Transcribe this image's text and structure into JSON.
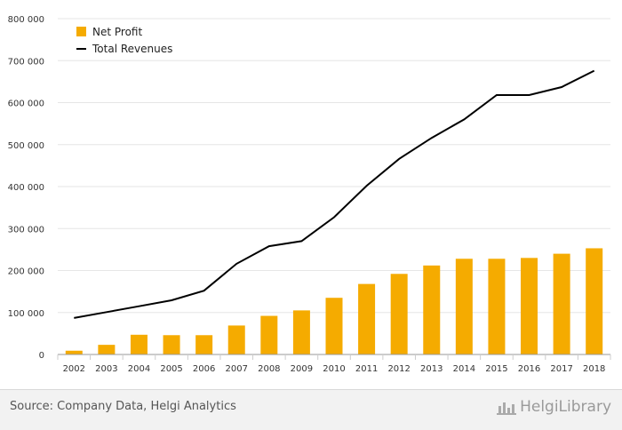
{
  "chart_data": {
    "type": "bar",
    "categories": [
      "2002",
      "2003",
      "2004",
      "2005",
      "2006",
      "2007",
      "2008",
      "2009",
      "2010",
      "2011",
      "2012",
      "2013",
      "2014",
      "2015",
      "2016",
      "2017",
      "2018"
    ],
    "series": [
      {
        "name": "Net Profit",
        "type": "bar",
        "color": "#f5ab00",
        "values": [
          9000,
          23000,
          47000,
          46000,
          46000,
          69000,
          92000,
          105000,
          135000,
          168000,
          192000,
          212000,
          228000,
          228000,
          230000,
          240000,
          253000
        ]
      },
      {
        "name": "Total Revenues",
        "type": "line",
        "color": "#000000",
        "values": [
          87000,
          101000,
          115000,
          129000,
          152000,
          216000,
          258000,
          270000,
          327000,
          402000,
          466000,
          516000,
          560000,
          618000,
          618000,
          637000,
          676000
        ]
      }
    ],
    "y_ticks": [
      "0",
      "100 000",
      "200 000",
      "300 000",
      "400 000",
      "500 000",
      "600 000",
      "700 000",
      "800 000"
    ],
    "ylim": [
      0,
      800000
    ],
    "grid": true,
    "legend_position": "top-left"
  },
  "legend": {
    "net_profit": "Net Profit",
    "total_revenues": "Total Revenues"
  },
  "footer": {
    "source": "Source: Company Data, Helgi Analytics",
    "logo_text": "HelgiLibrary"
  }
}
